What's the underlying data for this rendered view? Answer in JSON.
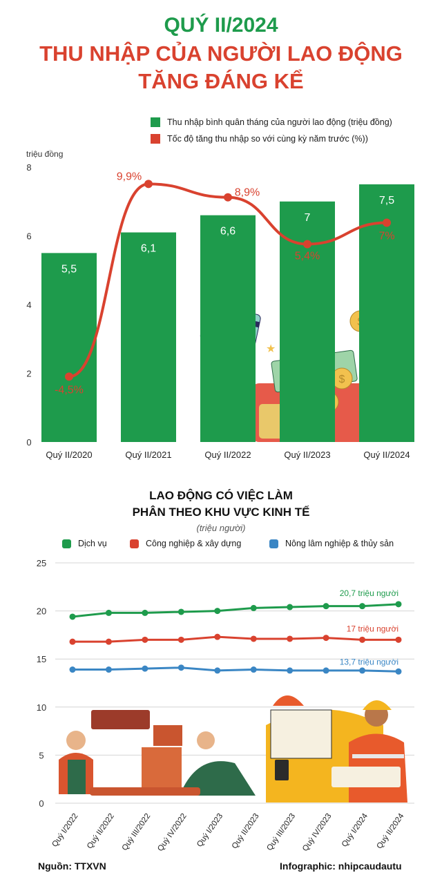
{
  "header": {
    "line1": "QUÝ II/2024",
    "line2": "THU NHẬP CỦA NGƯỜI LAO ĐỘNG",
    "line3": "TĂNG ĐÁNG KỂ"
  },
  "legend1": [
    {
      "label": "Thu nhập bình quân tháng của người lao động (triệu đồng)",
      "color": "#1e9b4c"
    },
    {
      "label": "Tốc độ tăng thu nhập so với cùng kỳ năm trước (%))",
      "color": "#d9422f"
    }
  ],
  "section2": {
    "title1": "LAO ĐỘNG CÓ VIỆC LÀM",
    "title2": "PHÂN THEO KHU VỰC KINH TẾ",
    "unit": "(triệu người)"
  },
  "legend2": [
    {
      "label": "Dịch vụ",
      "color": "#1e9b4c"
    },
    {
      "label": "Công nghiệp & xây dựng",
      "color": "#d9422f"
    },
    {
      "label": "Nông lâm nghiệp & thủy sản",
      "color": "#3a86c4"
    }
  ],
  "footer": {
    "source": "Nguồn: TTXVN",
    "credit": "Infographic: nhipcaudautu"
  },
  "chart_data": [
    {
      "type": "bar",
      "ylabel": "triệu đồng",
      "ylim": [
        0,
        8
      ],
      "yticks": [
        "0",
        "2",
        "4",
        "6",
        "8"
      ],
      "categories": [
        "Quý II/2020",
        "Quý II/2021",
        "Quý II/2022",
        "Quý II/2023",
        "Quý II/2024"
      ],
      "series": [
        {
          "name": "Thu nhập bình quân tháng của người lao động (triệu đồng)",
          "type": "bar",
          "color": "#1e9b4c",
          "values": [
            5.5,
            6.1,
            6.6,
            7,
            7.5
          ],
          "labels": [
            "5,5",
            "6,1",
            "6,6",
            "7",
            "7,5"
          ]
        },
        {
          "name": "Tốc độ tăng thu nhập so với cùng kỳ năm trước (%))",
          "type": "line",
          "color": "#d9422f",
          "values": [
            -4.5,
            9.9,
            8.9,
            5.4,
            7
          ],
          "labels": [
            "-4,5%",
            "9,9%",
            "8,9%",
            "5,4%",
            "7%"
          ]
        }
      ]
    },
    {
      "type": "line",
      "ylim": [
        0,
        25
      ],
      "yticks": [
        "0",
        "5",
        "10",
        "15",
        "20",
        "25"
      ],
      "categories": [
        "Quý I/2022",
        "Quý II/2022",
        "Quý III/2022",
        "Quý IV/2022",
        "Quý I/2023",
        "Quý II/2023",
        "Quý III/2023",
        "Quý IV/2023",
        "Quý I/2024",
        "Quý II/2024"
      ],
      "series": [
        {
          "name": "Dịch vụ",
          "color": "#1e9b4c",
          "values": [
            19.4,
            19.8,
            19.8,
            19.9,
            20.0,
            20.3,
            20.4,
            20.5,
            20.5,
            20.7
          ],
          "end_label": "20,7 triệu người"
        },
        {
          "name": "Công nghiệp & xây dựng",
          "color": "#d9422f",
          "values": [
            16.8,
            16.8,
            17.0,
            17.0,
            17.3,
            17.1,
            17.1,
            17.2,
            17.0,
            17.0
          ],
          "end_label": "17 triệu người"
        },
        {
          "name": "Nông lâm nghiệp & thủy sản",
          "color": "#3a86c4",
          "values": [
            13.9,
            13.9,
            14.0,
            14.1,
            13.8,
            13.9,
            13.8,
            13.8,
            13.8,
            13.7
          ],
          "end_label": "13,7 triệu người"
        }
      ]
    }
  ]
}
